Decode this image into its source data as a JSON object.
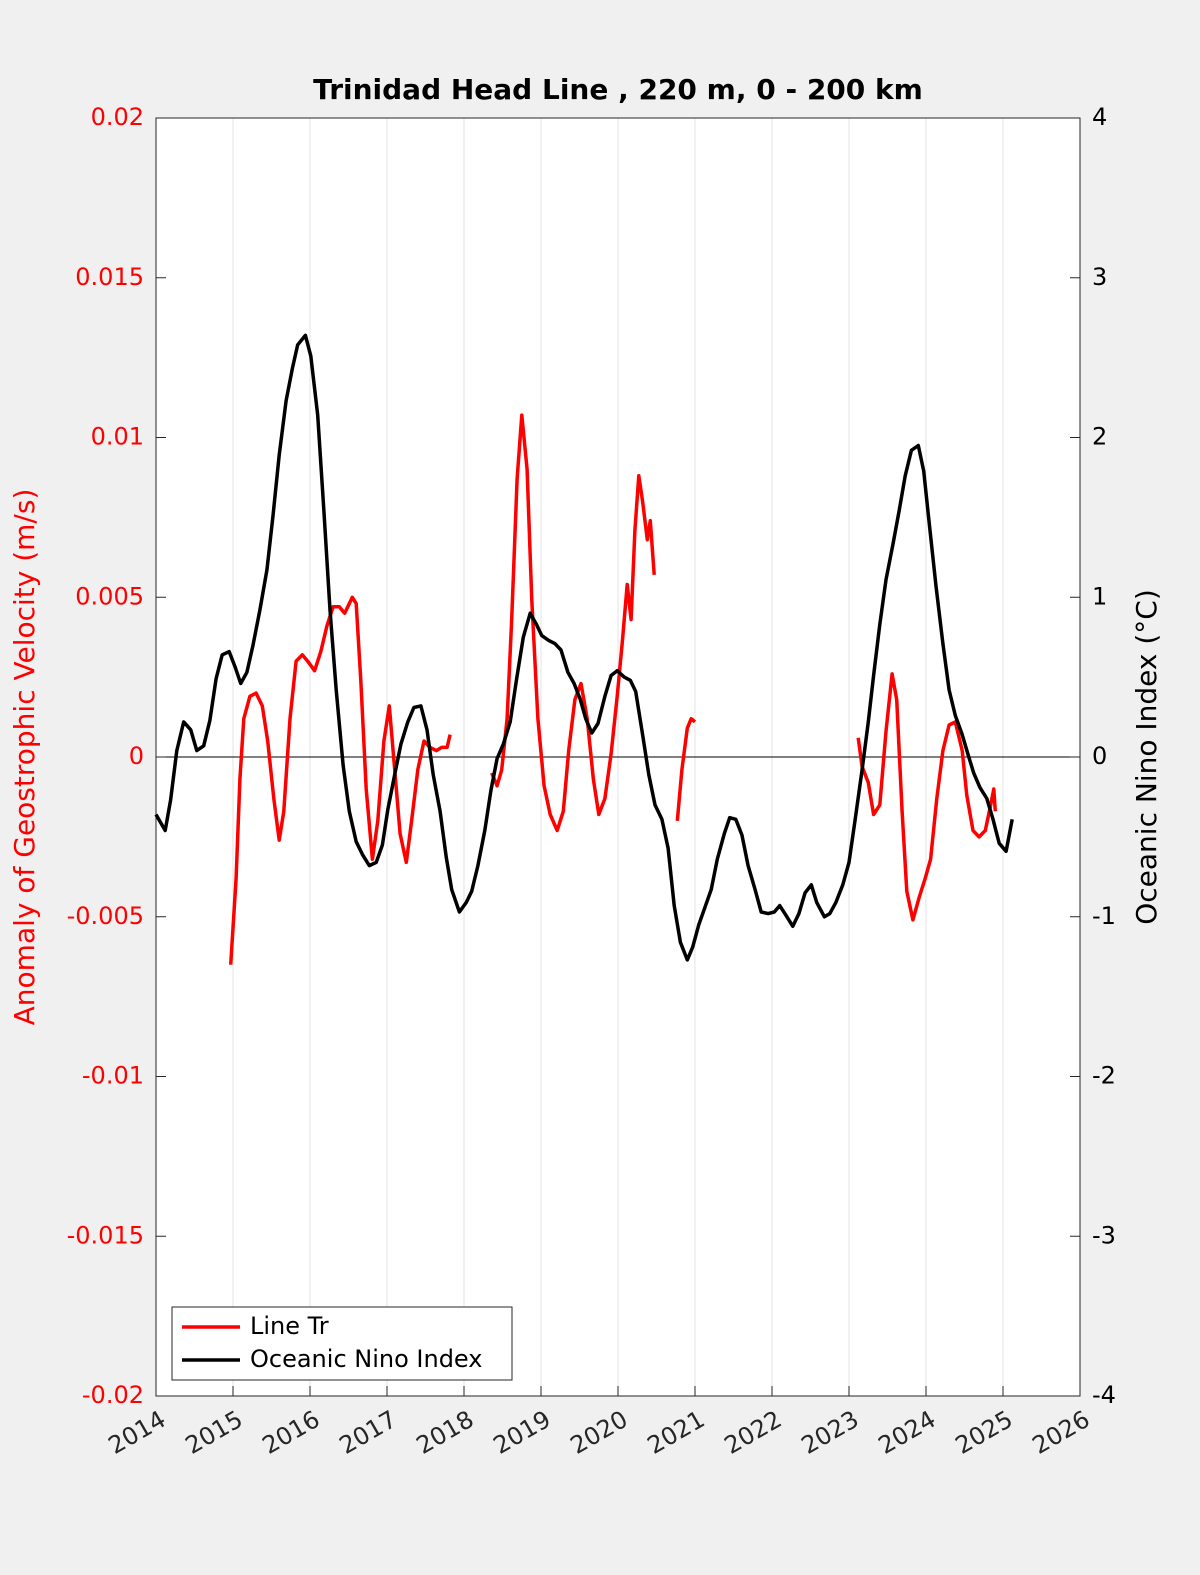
{
  "chart_data": {
    "type": "line",
    "title": "Trinidad Head Line , 220 m, 0 - 200 km",
    "ylabel": "Anomaly of Geostrophic Velocity (m/s)",
    "y2label": "Oceanic Nino Index (°C)",
    "xlim": [
      2014,
      2026
    ],
    "xticks": [
      2014,
      2015,
      2016,
      2017,
      2018,
      2019,
      2020,
      2021,
      2022,
      2023,
      2024,
      2025,
      2026
    ],
    "ylim": [
      -0.02,
      0.02
    ],
    "yticks": [
      -0.02,
      -0.015,
      -0.01,
      -0.005,
      0,
      0.005,
      0.01,
      0.015,
      0.02
    ],
    "y2lim": [
      -4,
      4
    ],
    "y2ticks": [
      -4,
      -3,
      -2,
      -1,
      0,
      1,
      2,
      3,
      4
    ],
    "xgrid": true,
    "legend": "lower left",
    "series": [
      {
        "name": "Line Tr",
        "color": "#ff0000",
        "x": [
          2014.97,
          2015.04,
          2015.09,
          2015.14,
          2015.22,
          2015.3,
          2015.38,
          2015.45,
          2015.53,
          2015.6,
          2015.66,
          2015.74,
          2015.82,
          2015.9,
          2015.97,
          2016.06,
          2016.14,
          2016.22,
          2016.3,
          2016.38,
          2016.45,
          2016.55,
          2016.6,
          2016.66,
          2016.73,
          2016.81,
          2016.88,
          2016.96,
          2017.03,
          2017.09,
          2017.17,
          2017.25,
          2017.32,
          2017.4,
          2017.48,
          2017.56,
          2017.64,
          2017.71,
          2017.78,
          2017.82,
          null,
          2018.36,
          2018.43,
          2018.49,
          2018.56,
          2018.62,
          2018.69,
          2018.75,
          2018.82,
          2018.88,
          2018.96,
          2019.04,
          2019.12,
          2019.21,
          2019.29,
          2019.36,
          2019.44,
          2019.52,
          2019.6,
          2019.68,
          2019.75,
          2019.83,
          2019.91,
          2019.99,
          2020.06,
          2020.12,
          2020.17,
          2020.22,
          2020.27,
          2020.32,
          2020.38,
          2020.42,
          2020.47,
          null,
          2020.77,
          2020.83,
          2020.9,
          2020.95,
          2021.0,
          null,
          2023.12,
          2023.17,
          2023.25,
          2023.32,
          2023.4,
          2023.48,
          2023.56,
          2023.62,
          2023.69,
          2023.75,
          2023.83,
          2023.91,
          2023.99,
          2024.06,
          2024.14,
          2024.22,
          2024.3,
          2024.38,
          2024.47,
          2024.53,
          2024.61,
          2024.69,
          2024.77,
          2024.84,
          2024.88,
          2024.9
        ],
        "values": [
          -0.0065,
          -0.0038,
          -0.0007,
          0.0012,
          0.0019,
          0.002,
          0.0016,
          0.0005,
          -0.0013,
          -0.0026,
          -0.0017,
          0.0012,
          0.003,
          0.0032,
          0.003,
          0.0027,
          0.0033,
          0.0041,
          0.0047,
          0.0047,
          0.0045,
          0.005,
          0.0048,
          0.0024,
          -0.001,
          -0.0032,
          -0.002,
          0.0005,
          0.0016,
          -0.0001,
          -0.0024,
          -0.0033,
          -0.002,
          -0.0004,
          0.0005,
          0.0003,
          0.0002,
          0.0003,
          0.0003,
          0.0007,
          null,
          -0.0005,
          -0.0009,
          -0.0004,
          0.0012,
          0.0043,
          0.0087,
          0.0107,
          0.009,
          0.0049,
          0.0012,
          -0.0009,
          -0.0018,
          -0.0023,
          -0.0017,
          0.0002,
          0.0018,
          0.0023,
          0.0012,
          -0.0007,
          -0.0018,
          -0.0013,
          0.0001,
          0.0019,
          0.0037,
          0.0054,
          0.0043,
          0.0071,
          0.0088,
          0.008,
          0.0068,
          0.0074,
          0.0057,
          null,
          -0.002,
          -0.0004,
          0.0009,
          0.0012,
          0.0011,
          null,
          0.0006,
          -0.0003,
          -0.0008,
          -0.0018,
          -0.0015,
          0.0008,
          0.0026,
          0.0018,
          -0.0017,
          -0.0042,
          -0.0051,
          -0.0044,
          -0.0038,
          -0.0032,
          -0.0013,
          0.0002,
          0.001,
          0.0011,
          0.0002,
          -0.0012,
          -0.0023,
          -0.0025,
          -0.0023,
          -0.0015,
          -0.001,
          -0.0017
        ]
      },
      {
        "name": "Oceanic Nino Index",
        "color": "#000000",
        "axis": "y2",
        "x": [
          2014.0,
          2014.12,
          2014.19,
          2014.27,
          2014.36,
          2014.45,
          2014.53,
          2014.62,
          2014.7,
          2014.78,
          2014.86,
          2014.95,
          2015.03,
          2015.1,
          2015.18,
          2015.26,
          2015.35,
          2015.44,
          2015.52,
          2015.6,
          2015.69,
          2015.77,
          2015.84,
          2015.94,
          2016.01,
          2016.1,
          2016.18,
          2016.26,
          2016.34,
          2016.43,
          2016.51,
          2016.6,
          2016.68,
          2016.77,
          2016.86,
          2016.94,
          2017.01,
          2017.1,
          2017.18,
          2017.27,
          2017.35,
          2017.44,
          2017.52,
          2017.6,
          2017.69,
          2017.77,
          2017.84,
          2017.94,
          2018.03,
          2018.1,
          2018.18,
          2018.27,
          2018.35,
          2018.43,
          2018.51,
          2018.6,
          2018.68,
          2018.77,
          2018.86,
          2018.94,
          2019.01,
          2019.1,
          2019.18,
          2019.26,
          2019.35,
          2019.43,
          2019.51,
          2019.58,
          2019.66,
          2019.74,
          2019.83,
          2019.91,
          2019.99,
          2020.08,
          2020.16,
          2020.23,
          2020.32,
          2020.4,
          2020.48,
          2020.57,
          2020.65,
          2020.73,
          2020.81,
          2020.9,
          2020.97,
          2021.05,
          2021.13,
          2021.21,
          2021.29,
          2021.38,
          2021.45,
          2021.53,
          2021.61,
          2021.69,
          2021.78,
          2021.86,
          2021.95,
          2022.03,
          2022.1,
          2022.18,
          2022.27,
          2022.35,
          2022.43,
          2022.51,
          2022.58,
          2022.68,
          2022.75,
          2022.83,
          2022.92,
          2023.0,
          2023.08,
          2023.17,
          2023.25,
          2023.32,
          2023.4,
          2023.48,
          2023.57,
          2023.65,
          2023.73,
          2023.81,
          2023.9,
          2023.97,
          2024.05,
          2024.13,
          2024.22,
          2024.3,
          2024.38,
          2024.47,
          2024.55,
          2024.62,
          2024.7,
          2024.79,
          2024.87,
          2024.95,
          2025.04,
          2025.12
        ],
        "values": [
          -0.36,
          -0.46,
          -0.27,
          0.04,
          0.22,
          0.17,
          0.04,
          0.07,
          0.23,
          0.49,
          0.64,
          0.66,
          0.56,
          0.46,
          0.53,
          0.7,
          0.92,
          1.17,
          1.51,
          1.89,
          2.23,
          2.43,
          2.58,
          2.64,
          2.51,
          2.14,
          1.54,
          0.92,
          0.42,
          -0.05,
          -0.34,
          -0.53,
          -0.61,
          -0.68,
          -0.66,
          -0.55,
          -0.33,
          -0.11,
          0.08,
          0.22,
          0.31,
          0.32,
          0.17,
          -0.11,
          -0.34,
          -0.63,
          -0.83,
          -0.97,
          -0.91,
          -0.84,
          -0.68,
          -0.46,
          -0.21,
          -0.01,
          0.08,
          0.22,
          0.48,
          0.75,
          0.9,
          0.83,
          0.76,
          0.73,
          0.71,
          0.67,
          0.53,
          0.46,
          0.36,
          0.24,
          0.15,
          0.21,
          0.38,
          0.51,
          0.54,
          0.5,
          0.48,
          0.41,
          0.14,
          -0.11,
          -0.3,
          -0.39,
          -0.57,
          -0.93,
          -1.16,
          -1.27,
          -1.19,
          -1.05,
          -0.94,
          -0.83,
          -0.64,
          -0.48,
          -0.38,
          -0.39,
          -0.49,
          -0.68,
          -0.83,
          -0.97,
          -0.98,
          -0.97,
          -0.93,
          -0.99,
          -1.06,
          -0.98,
          -0.85,
          -0.8,
          -0.91,
          -1.0,
          -0.98,
          -0.91,
          -0.8,
          -0.66,
          -0.39,
          -0.08,
          0.22,
          0.51,
          0.83,
          1.11,
          1.33,
          1.54,
          1.76,
          1.92,
          1.95,
          1.79,
          1.43,
          1.07,
          0.71,
          0.42,
          0.26,
          0.14,
          0.01,
          -0.1,
          -0.19,
          -0.26,
          -0.39,
          -0.54,
          -0.59,
          -0.39
        ]
      }
    ]
  }
}
